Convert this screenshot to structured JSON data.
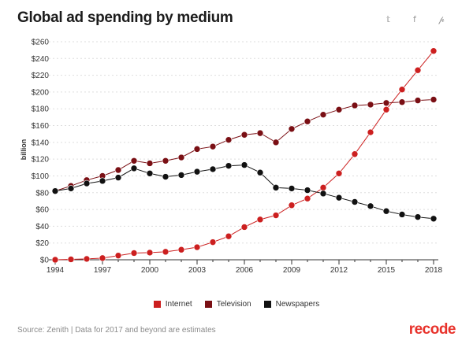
{
  "header": {
    "title": "Global ad spending by medium",
    "share": {
      "twitter": "𝕥",
      "facebook": "f",
      "pinterest": "𝓅"
    }
  },
  "footer": {
    "source": "Source:  Zenith  |  Data for 2017 and beyond are estimates",
    "logo": "recode"
  },
  "colors": {
    "internet": "#cc1f1f",
    "television": "#7a0f14",
    "newspapers": "#111111",
    "grid": "#dddddd",
    "axis": "#333333"
  },
  "chart_data": {
    "type": "line",
    "title": "Global ad spending by medium",
    "ylabel": "billion",
    "xlabel": "",
    "ylim": [
      0,
      260
    ],
    "xlim": [
      1994,
      2018
    ],
    "y_ticks": [
      "$0",
      "$20",
      "$40",
      "$60",
      "$80",
      "$100",
      "$120",
      "$140",
      "$160",
      "$180",
      "$200",
      "$220",
      "$240",
      "$260"
    ],
    "x_ticks": [
      "1994",
      "1997",
      "2000",
      "2003",
      "2006",
      "2009",
      "2012",
      "2015",
      "2018"
    ],
    "grid": "horizontal dotted",
    "legend_position": "bottom",
    "x": [
      1994,
      1995,
      1996,
      1997,
      1998,
      1999,
      2000,
      2001,
      2002,
      2003,
      2004,
      2005,
      2006,
      2007,
      2008,
      2009,
      2010,
      2011,
      2012,
      2013,
      2014,
      2015,
      2016,
      2017,
      2018
    ],
    "series": [
      {
        "name": "Internet",
        "color": "#cc1f1f",
        "values": [
          0,
          0.5,
          1,
          2,
          5,
          8,
          8.5,
          9.5,
          12,
          15,
          21,
          28,
          39,
          48,
          53,
          65,
          73,
          86,
          103,
          126,
          152,
          179,
          203,
          226,
          249
        ]
      },
      {
        "name": "Television",
        "color": "#7a0f14",
        "values": [
          82,
          88,
          95,
          100,
          107,
          118,
          115,
          118,
          122,
          132,
          135,
          143,
          149,
          151,
          140,
          156,
          165,
          173,
          179,
          184,
          185,
          187,
          188,
          190,
          191
        ]
      },
      {
        "name": "Newspapers",
        "color": "#111111",
        "values": [
          82,
          85,
          91,
          94,
          98,
          109,
          103,
          99,
          101,
          105,
          108,
          112,
          113,
          104,
          86,
          85,
          83,
          79,
          74,
          69,
          64,
          58,
          54,
          51,
          49
        ]
      }
    ]
  }
}
